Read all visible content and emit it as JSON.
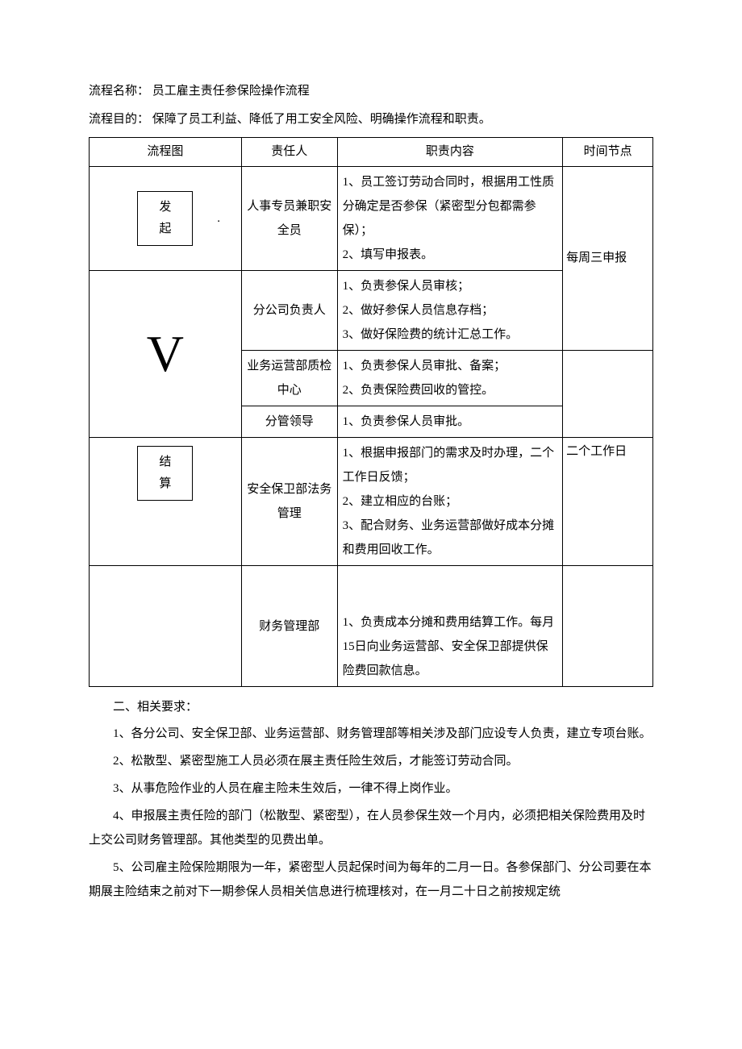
{
  "header": {
    "name_label": "流程名称：",
    "name_value": "员工雇主责任参保险操作流程",
    "purpose_label": "流程目的：",
    "purpose_value": "保障了员工利益、降低了用工安全风险、明确操作流程和职责。"
  },
  "table": {
    "headers": {
      "flow": "流程图",
      "resp": "责任人",
      "duty": "职责内容",
      "time": "时间节点"
    },
    "rows": [
      {
        "flow_label": "发起",
        "resp": "人事专员兼职安全员",
        "duty": "1、员工签订劳动合同时，根据用工性质分确定是否参保（紧密型分包都需参保）；\n2、填写申报表。",
        "time": "每周三申报"
      },
      {
        "resp": "分公司负责人",
        "duty": "1、负责参保人员审核；\n2、做好参保人员信息存档；\n3、做好保险费的统计汇总工作。"
      },
      {
        "flow_symbol": "V",
        "resp": "业务运营部质检中心",
        "duty": "1、负责参保人员审批、备案；\n2、负责保险费回收的管控。"
      },
      {
        "resp": "分管领导",
        "duty": "1、负责参保人员审批。"
      },
      {
        "flow_label": "结算",
        "resp": "安全保卫部法务管理",
        "duty": "1、根据申报部门的需求及时办理，二个工作日反馈；\n2、建立相应的台账；\n3、配合财务、业务运营部做好成本分摊和费用回收工作。",
        "time": "二个工作日"
      },
      {
        "resp": "财务管理部",
        "duty": "1、负责成本分摊和费用结算工作。每月15日向业务运营部、安全保卫部提供保险费回款信息。"
      }
    ]
  },
  "requirements": {
    "title": "二、相关要求：",
    "items": [
      "1、各分公司、安全保卫部、业务运营部、财务管理部等相关涉及部门应设专人负责，建立专项台账。",
      "2、松散型、紧密型施工人员必须在展主责任险生效后，才能签订劳动合同。",
      "3、从事危险作业的人员在雇主险未生效后，一律不得上岗作业。",
      "4、申报展主责任险的部门（松散型、紧密型），在人员参保生效一个月内，必须把相关保险费用及时上交公司财务管理部。其他类型的见费出单。",
      "5、公司雇主险保险期限为一年，紧密型人员起保时间为每年的二月一日。各参保部门、分公司要在本期展主险结束之前对下一期参保人员相关信息进行梳理核对，在一月二十日之前按规定统"
    ]
  }
}
